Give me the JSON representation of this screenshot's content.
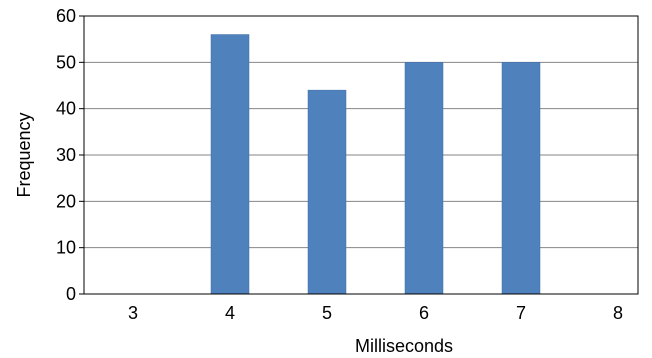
{
  "chart_data": {
    "type": "bar",
    "categories": [
      "3",
      "4",
      "5",
      "6",
      "7",
      "8"
    ],
    "values": [
      0,
      56,
      44,
      50,
      50,
      0
    ],
    "title": "",
    "xlabel": "Milliseconds",
    "ylabel": "Frequency",
    "ylim": [
      0,
      60
    ],
    "yticks": [
      "0",
      "10",
      "20",
      "30",
      "40",
      "50",
      "60"
    ],
    "grid": true,
    "legend": "none",
    "bar_color": "#4f81bd"
  }
}
